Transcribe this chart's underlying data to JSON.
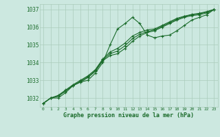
{
  "x": [
    0,
    1,
    2,
    3,
    4,
    5,
    6,
    7,
    8,
    9,
    10,
    11,
    12,
    13,
    14,
    15,
    16,
    17,
    18,
    19,
    20,
    21,
    22,
    23
  ],
  "line1": [
    1031.7,
    1032.0,
    1032.0,
    1032.3,
    1032.7,
    1032.9,
    1033.0,
    1033.4,
    1034.0,
    1035.0,
    1035.9,
    1036.2,
    1036.55,
    1036.2,
    1035.55,
    1035.4,
    1035.5,
    1035.55,
    1035.8,
    1036.1,
    1036.4,
    1036.55,
    1036.7,
    1037.0
  ],
  "line2": [
    1031.7,
    1032.0,
    1032.1,
    1032.4,
    1032.7,
    1032.9,
    1033.15,
    1033.5,
    1034.1,
    1034.4,
    1034.5,
    1034.8,
    1035.2,
    1035.5,
    1035.7,
    1035.8,
    1036.0,
    1036.2,
    1036.4,
    1036.55,
    1036.65,
    1036.7,
    1036.8,
    1037.0
  ],
  "line3": [
    1031.7,
    1032.0,
    1032.1,
    1032.4,
    1032.7,
    1032.95,
    1033.2,
    1033.55,
    1034.15,
    1034.5,
    1034.65,
    1034.95,
    1035.35,
    1035.6,
    1035.75,
    1035.85,
    1036.05,
    1036.25,
    1036.45,
    1036.6,
    1036.7,
    1036.75,
    1036.85,
    1037.0
  ],
  "line4": [
    1031.7,
    1032.0,
    1032.15,
    1032.45,
    1032.75,
    1033.0,
    1033.25,
    1033.6,
    1034.2,
    1034.6,
    1034.8,
    1035.1,
    1035.5,
    1035.7,
    1035.85,
    1035.9,
    1036.1,
    1036.3,
    1036.5,
    1036.62,
    1036.72,
    1036.78,
    1036.88,
    1037.0
  ],
  "ylim": [
    1031.5,
    1037.3
  ],
  "yticks": [
    1032,
    1033,
    1034,
    1035,
    1036,
    1037
  ],
  "xlim": [
    -0.5,
    23.5
  ],
  "bg_color": "#cce8e0",
  "grid_color": "#aaccbb",
  "line_color": "#1a6b2a",
  "xlabel": "Graphe pression niveau de la mer (hPa)",
  "marker": "+",
  "marker_size": 3.0,
  "line_width": 0.8
}
